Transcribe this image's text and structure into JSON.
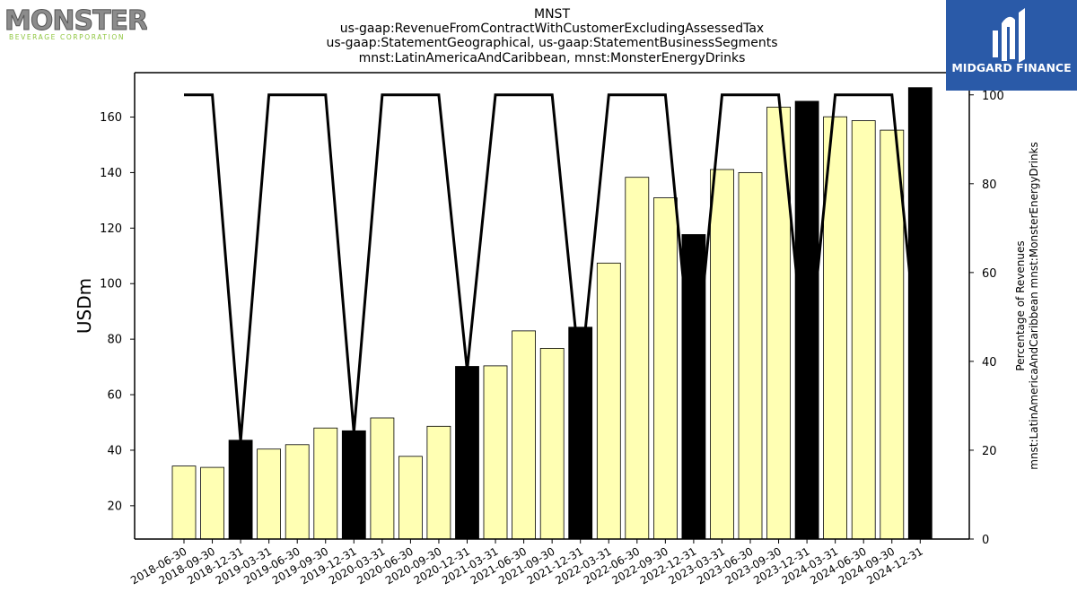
{
  "logos": {
    "left": {
      "main": "MONSTER",
      "sub": "BEVERAGE CORPORATION"
    },
    "right": {
      "main": "MIDGARD FINANCE",
      "colors": {
        "bg": "#2a5aa8",
        "fg": "#ffffff"
      }
    }
  },
  "chart_data": {
    "type": "bar",
    "title_lines": [
      "MNST",
      "us-gaap:RevenueFromContractWithCustomerExcludingAssessedTax",
      "us-gaap:StatementGeographical, us-gaap:StatementBusinessSegments",
      "mnst:LatinAmericaAndCaribbean, mnst:MonsterEnergyDrinks"
    ],
    "ylabel": "USDm",
    "y2label_lines": [
      "Percentage of Revenues",
      "mnst:LatinAmericaAndCaribbean mnst:MonsterEnergyDrinks"
    ],
    "ylim": [
      8,
      176
    ],
    "y2lim": [
      0,
      105
    ],
    "yticks": [
      20,
      40,
      60,
      80,
      100,
      120,
      140,
      160
    ],
    "y2ticks": [
      0,
      20,
      40,
      60,
      80,
      100
    ],
    "colors": {
      "quarter_bar": "#ffffb3",
      "annual_bar": "#000000",
      "bar_edge": "#000000",
      "line": "#000000"
    },
    "categories": [
      "2018-06-30",
      "2018-09-30",
      "2018-12-31",
      "2019-03-31",
      "2019-06-30",
      "2019-09-30",
      "2019-12-31",
      "2020-03-31",
      "2020-06-30",
      "2020-09-30",
      "2020-12-31",
      "2021-03-31",
      "2021-06-30",
      "2021-09-30",
      "2021-12-31",
      "2022-03-31",
      "2022-06-30",
      "2022-09-30",
      "2022-12-31",
      "2023-03-31",
      "2023-06-30",
      "2023-09-30",
      "2023-12-31",
      "2024-03-31",
      "2024-06-30",
      "2024-09-30",
      "2024-12-31"
    ],
    "series": [
      {
        "values": [
          34.3,
          33.8,
          43.6,
          40.4,
          42.0,
          48.0,
          47.0,
          51.6,
          37.8,
          48.6,
          70.2,
          70.4,
          83.0,
          76.7,
          84.3,
          107.4,
          138.3,
          130.9,
          117.7,
          141.1,
          140.0,
          163.6,
          165.7,
          160.1,
          158.7,
          155.3,
          170.6
        ],
        "annual": [
          false,
          false,
          true,
          false,
          false,
          false,
          true,
          false,
          false,
          false,
          true,
          false,
          false,
          false,
          true,
          false,
          false,
          false,
          true,
          false,
          false,
          false,
          true,
          false,
          false,
          false,
          true
        ]
      },
      {
        "axis": "right",
        "values": [
          100,
          100,
          22,
          100,
          100,
          100,
          24,
          100,
          100,
          100,
          38,
          100,
          100,
          100,
          36,
          100,
          100,
          100,
          34,
          100,
          100,
          100,
          36,
          100,
          100,
          100,
          36
        ]
      }
    ]
  }
}
